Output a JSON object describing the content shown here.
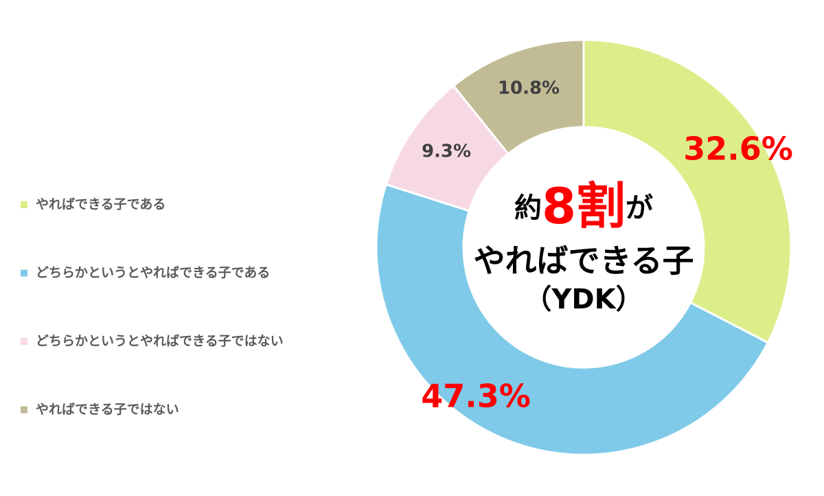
{
  "chart_data": {
    "type": "donut",
    "categories": [
      "やればできる子である",
      "どちらかというとやればできる子である",
      "どちらかというとやればできる子ではない",
      "やればできる子ではない"
    ],
    "values": [
      32.6,
      47.3,
      9.3,
      10.8
    ],
    "value_labels": [
      "32.6%",
      "47.3%",
      "9.3%",
      "10.8%"
    ],
    "colors": [
      "#dcee8a",
      "#7ecae8",
      "#f7d9e6",
      "#c2bc96"
    ],
    "value_label_colors": [
      "#ff0000",
      "#ff0000",
      "#404040",
      "#404040"
    ],
    "center_text": {
      "line1": [
        "約",
        "8割",
        "が"
      ],
      "line2": "やればできる子",
      "line3": "（YDK）"
    }
  }
}
